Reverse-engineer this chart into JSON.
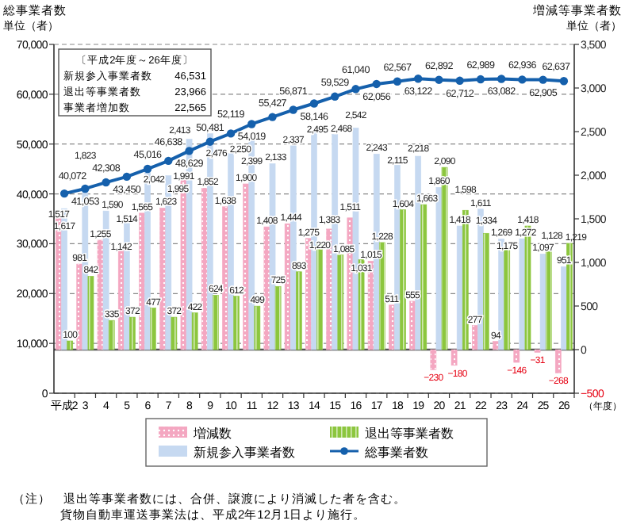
{
  "chart_data": {
    "type": "bar",
    "ylabel": "総事業者数",
    "y2label": "増減等事業者数",
    "xlabel": "（年度）",
    "categories": [
      "平成2",
      "3",
      "4",
      "5",
      "6",
      "7",
      "8",
      "9",
      "10",
      "11",
      "12",
      "13",
      "14",
      "15",
      "16",
      "17",
      "18",
      "19",
      "20",
      "21",
      "22",
      "23",
      "24",
      "25",
      "26"
    ],
    "series": [
      {
        "name": "増減数",
        "axis": "y2",
        "color": "#f4a7c1",
        "values": [
          1517,
          981,
          1255,
          1142,
          1565,
          1623,
          1991,
          1852,
          1638,
          1900,
          1408,
          1444,
          1275,
          1383,
          1511,
          1015,
          511,
          555,
          -230,
          -180,
          277,
          94,
          -146,
          -31,
          -268
        ],
        "value_labels": [
          "1,517",
          "981",
          "1,255",
          "1,142",
          "1,565",
          "1,623",
          "1,991",
          "1,852",
          "1,638",
          "1,900",
          "1,408",
          "1,444",
          "1,275",
          "1,383",
          "1,511",
          "1,015",
          "511",
          "555",
          "−230",
          "−180",
          "277",
          "94",
          "−146",
          "−31",
          "−268"
        ]
      },
      {
        "name": "新規参入事業者数",
        "axis": "y2",
        "color": "#c6d9f1",
        "values": [
          1617,
          1823,
          1590,
          1514,
          2042,
          1995,
          2413,
          2476,
          2250,
          2399,
          2133,
          2337,
          2495,
          2468,
          2542,
          2243,
          2115,
          2218,
          1860,
          1418,
          1611,
          1269,
          1272,
          1097,
          951
        ],
        "value_labels": [
          "1,617",
          "1,823",
          "1,590",
          "1,514",
          "2,042",
          "1,995",
          "2,413",
          "2,476",
          "2,250",
          "2,399",
          "2,133",
          "2,337",
          "2,495",
          "2,468",
          "2,542",
          "2,243",
          "2,115",
          "2,218",
          "1,860",
          "1,418",
          "1,611",
          "1,269",
          "1,272",
          "1,097",
          "951"
        ]
      },
      {
        "name": "退出等事業者数",
        "axis": "y2",
        "color": "#8cc63e",
        "values": [
          100,
          842,
          335,
          372,
          477,
          372,
          422,
          624,
          612,
          499,
          725,
          893,
          1220,
          1085,
          1031,
          1228,
          1604,
          1663,
          2090,
          1598,
          1334,
          1175,
          1418,
          1128,
          1219
        ],
        "value_labels": [
          "100",
          "842",
          "335",
          "372",
          "477",
          "372",
          "422",
          "624",
          "612",
          "499",
          "725",
          "893",
          "1,220",
          "1,085",
          "1,031",
          "1,228",
          "1,604",
          "1,663",
          "2,090",
          "1,598",
          "1,334",
          "1,175",
          "1,418",
          "1,128",
          "1,219"
        ]
      },
      {
        "name": "総事業者数",
        "type": "line",
        "color": "#1560ac",
        "values": [
          40072,
          41053,
          42308,
          43450,
          45016,
          46638,
          48629,
          50481,
          52119,
          54019,
          55427,
          56871,
          58146,
          59529,
          61040,
          62056,
          62567,
          63122,
          62892,
          62712,
          62989,
          63082,
          62936,
          62905,
          62637
        ],
        "value_labels": [
          "40,072",
          "41,053",
          "42,308",
          "43,450",
          "45,016",
          "46,638",
          "48,629",
          "50,481",
          "52,119",
          "54,019",
          "55,427",
          "56,871",
          "58,146",
          "59,529",
          "61,040",
          "62,056",
          "62,567",
          "63,122",
          "62,892",
          "62,712",
          "62,989",
          "63,082",
          "62,936",
          "62,905",
          "62,637"
        ]
      }
    ],
    "ylim": [
      0,
      70000
    ],
    "yticks": [
      {
        "value": 0,
        "label": "0"
      },
      {
        "value": 10000,
        "label": "10,000"
      },
      {
        "value": 20000,
        "label": "20,000"
      },
      {
        "value": 30000,
        "label": "30,000"
      },
      {
        "value": 40000,
        "label": "40,000"
      },
      {
        "value": 50000,
        "label": "50,000"
      },
      {
        "value": 60000,
        "label": "60,000"
      },
      {
        "value": 70000,
        "label": "70,000"
      }
    ],
    "y2lim": [
      -500,
      3500
    ],
    "y2ticks": [
      {
        "value": -500,
        "label": "−500"
      },
      {
        "value": 0,
        "label": "0"
      },
      {
        "value": 500,
        "label": "500"
      },
      {
        "value": 1000,
        "label": "1,000"
      },
      {
        "value": 1500,
        "label": "1,500"
      },
      {
        "value": 2000,
        "label": "2,000"
      },
      {
        "value": 2500,
        "label": "2,500"
      },
      {
        "value": 3000,
        "label": "3,000"
      },
      {
        "value": 3500,
        "label": "3,500"
      }
    ],
    "ref_lines": [
      {
        "axis": "y2",
        "value": 0,
        "color": "#555555"
      }
    ],
    "grid": "y",
    "legend": "bottom",
    "marker": "circle",
    "line_style": "solid",
    "annotations": [
      "〔平成2年度～26年度〕",
      "新規参入事業者数　46,531",
      "退出等事業者数　23,966",
      "事業者増加数　22,565",
      "（注）　退出等事業者数には、合併、譲渡により消滅した者を含む。",
      "貨物自動車運送事業法は、平成2年12月1日より施行。",
      "単位（者）",
      "単位（者）"
    ]
  }
}
